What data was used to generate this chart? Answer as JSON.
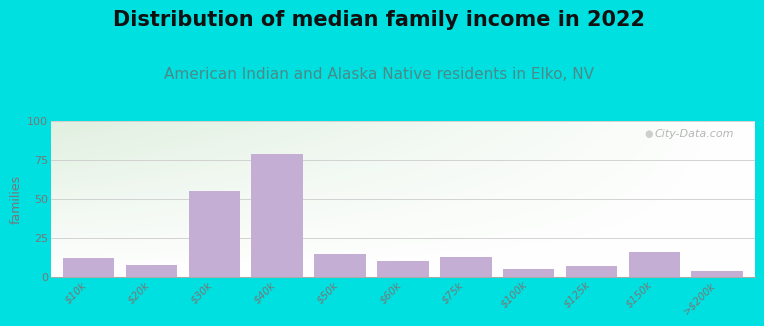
{
  "title": "Distribution of median family income in 2022",
  "subtitle": "American Indian and Alaska Native residents in Elko, NV",
  "ylabel": "families",
  "categories": [
    "$10k",
    "$20k",
    "$30k",
    "$40k",
    "$50k",
    "$60k",
    "$75k",
    "$100k",
    "$125k",
    "$150k",
    ">$200k"
  ],
  "values": [
    12,
    8,
    55,
    79,
    15,
    10,
    13,
    5,
    7,
    16,
    4
  ],
  "bar_color": "#c4aed4",
  "ylim": [
    0,
    100
  ],
  "yticks": [
    0,
    25,
    50,
    75,
    100
  ],
  "background_outer": "#00e0e0",
  "title_fontsize": 15,
  "subtitle_fontsize": 11,
  "subtitle_color": "#4a8a8a",
  "watermark_text": "City-Data.com",
  "grid_color": "#cccccc",
  "tick_color": "#777777"
}
